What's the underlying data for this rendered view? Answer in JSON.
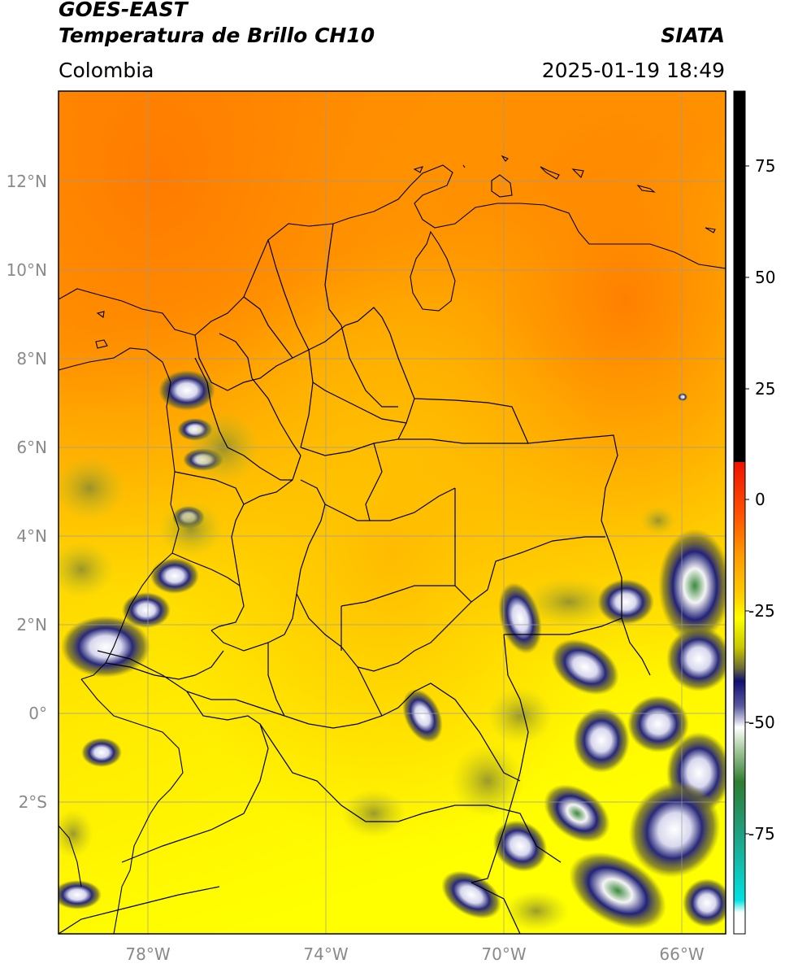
{
  "header": {
    "source": "GOES-EAST",
    "product": "Temperatura de Brillo CH10",
    "region": "Colombia",
    "agency": "SIATA",
    "timestamp": "2025-01-19 18:49"
  },
  "map": {
    "lat_ticks": [
      "12°N",
      "10°N",
      "8°N",
      "6°N",
      "4°N",
      "2°N",
      "0°",
      "2°S"
    ],
    "lon_ticks": [
      "78°W",
      "74°W",
      "70°W",
      "66°W"
    ],
    "extent": {
      "lon_min": -80,
      "lon_max": -65,
      "lat_min": -5,
      "lat_max": 14
    }
  },
  "colorbar": {
    "ticks": [
      "75",
      "50",
      "25",
      "0",
      "-25",
      "-50",
      "-75"
    ],
    "range": [
      -95,
      90
    ],
    "colors": {
      "black": "#000000",
      "red": "#ee1100",
      "orange": "#ff8800",
      "yellow": "#ffff00",
      "olive": "#7a7a20",
      "navy": "#101070",
      "white": "#ffffff",
      "green": "#2e7d32",
      "cyan": "#00e0e0"
    }
  }
}
